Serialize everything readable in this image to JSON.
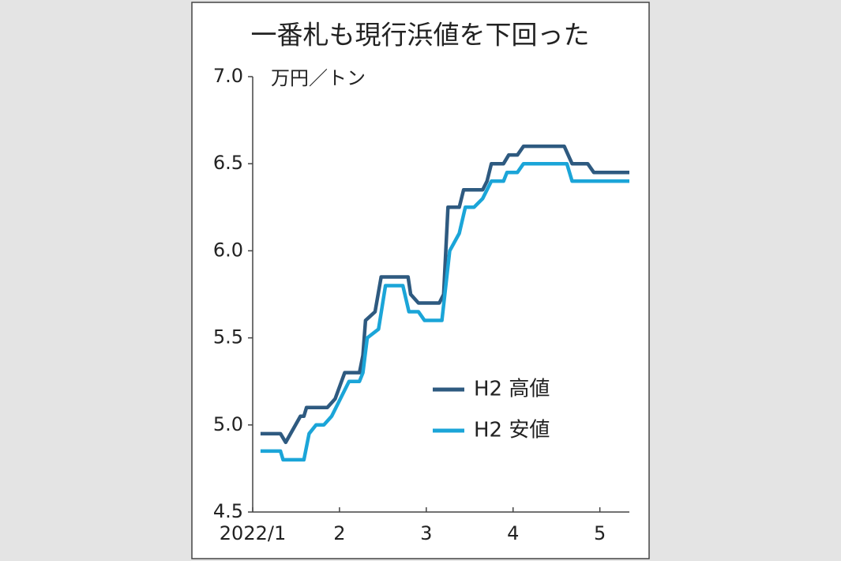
{
  "chart_data": {
    "type": "line",
    "title": "一番札も現行浜値を下回った",
    "y_label": "万円／トン",
    "xlim": [
      1,
      5.34
    ],
    "xticks": [
      {
        "value": 1,
        "label": "2022/1"
      },
      2,
      3,
      4,
      5
    ],
    "ylim": [
      4.5,
      7.0
    ],
    "yticks": [
      {
        "value": 4.5,
        "label": "4.5"
      },
      {
        "value": 5.0,
        "label": "5.0"
      },
      {
        "value": 5.5,
        "label": "5.5"
      },
      {
        "value": 6.0,
        "label": "6.0"
      },
      {
        "value": 6.5,
        "label": "6.5"
      },
      {
        "value": 7.0,
        "label": "7.0"
      }
    ],
    "grid": false,
    "series": [
      {
        "name": "H2 高値",
        "color": "#2e5a80",
        "x": [
          1.09,
          1.32,
          1.38,
          1.55,
          1.59,
          1.62,
          1.86,
          1.95,
          2.06,
          2.23,
          2.27,
          2.3,
          2.41,
          2.48,
          2.79,
          2.82,
          2.91,
          3.15,
          3.2,
          3.25,
          3.38,
          3.43,
          3.65,
          3.7,
          3.75,
          3.89,
          3.95,
          4.05,
          4.12,
          4.59,
          4.68,
          4.86,
          4.93,
          5.34
        ],
        "values": [
          4.95,
          4.95,
          4.9,
          5.05,
          5.05,
          5.1,
          5.1,
          5.15,
          5.3,
          5.3,
          5.4,
          5.6,
          5.65,
          5.85,
          5.85,
          5.75,
          5.7,
          5.7,
          5.75,
          6.25,
          6.25,
          6.35,
          6.35,
          6.4,
          6.5,
          6.5,
          6.55,
          6.55,
          6.6,
          6.6,
          6.5,
          6.5,
          6.45,
          6.45
        ]
      },
      {
        "name": "H2 安値",
        "color": "#1ba5d8",
        "x": [
          1.09,
          1.32,
          1.35,
          1.59,
          1.65,
          1.73,
          1.82,
          1.91,
          2.11,
          2.23,
          2.27,
          2.32,
          2.45,
          2.53,
          2.73,
          2.8,
          2.91,
          2.98,
          3.18,
          3.27,
          3.38,
          3.45,
          3.55,
          3.65,
          3.75,
          3.89,
          3.93,
          4.05,
          4.12,
          4.62,
          4.68,
          5.34
        ],
        "values": [
          4.85,
          4.85,
          4.8,
          4.8,
          4.95,
          5.0,
          5.0,
          5.05,
          5.25,
          5.25,
          5.3,
          5.5,
          5.55,
          5.8,
          5.8,
          5.65,
          5.65,
          5.6,
          5.6,
          6.0,
          6.1,
          6.25,
          6.25,
          6.3,
          6.4,
          6.4,
          6.45,
          6.45,
          6.5,
          6.5,
          6.4,
          6.4
        ]
      }
    ]
  }
}
